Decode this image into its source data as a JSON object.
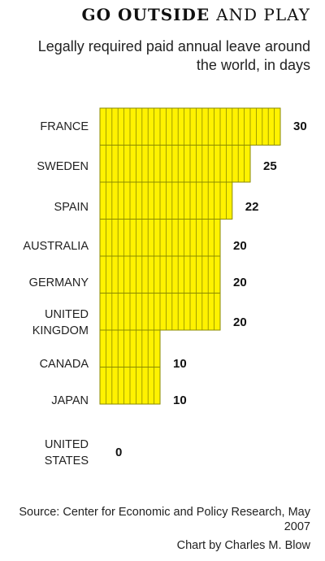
{
  "title": {
    "bold": "GO OUTSIDE",
    "light": "AND PLAY"
  },
  "subtitle": "Legally required paid annual leave around the world, in days",
  "source": "Source: Center for Economic and Policy Research, May 2007",
  "credit": "Chart by Charles M. Blow",
  "colors": {
    "bar_fill": "#fff200",
    "bar_line": "#8a8a00",
    "text": "#222222"
  },
  "chart_data": {
    "type": "bar",
    "orientation": "horizontal",
    "title": "GO OUTSIDE AND PLAY",
    "subtitle": "Legally required paid annual leave around the world, in days",
    "unit": "days",
    "grid": false,
    "legend": "none",
    "xlim": [
      0,
      30
    ],
    "categories": [
      "FRANCE",
      "SWEDEN",
      "SPAIN",
      "AUSTRALIA",
      "GERMANY",
      "UNITED KINGDOM",
      "CANADA",
      "JAPAN",
      "UNITED STATES"
    ],
    "category_lines": [
      [
        "FRANCE"
      ],
      [
        "SWEDEN"
      ],
      [
        "SPAIN"
      ],
      [
        "AUSTRALIA"
      ],
      [
        "GERMANY"
      ],
      [
        "UNITED",
        "KINGDOM"
      ],
      [
        "CANADA"
      ],
      [
        "JAPAN"
      ],
      [
        "UNITED",
        "STATES"
      ]
    ],
    "values": [
      30,
      25,
      22,
      20,
      20,
      20,
      10,
      10,
      0
    ]
  }
}
